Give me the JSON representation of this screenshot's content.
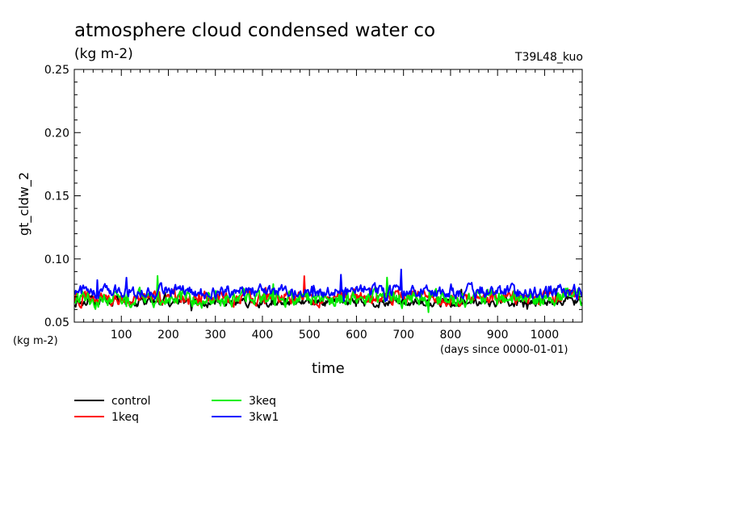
{
  "chart_data": {
    "type": "line",
    "title": "atmosphere cloud condensed water co",
    "units_label": "(kg m-2)",
    "tag": "T39L48_kuo",
    "ylabel": "gt_cldw_2",
    "xlabel": "time",
    "y_units": "(kg m-2)",
    "x_units": "(days since 0000-01-01)",
    "xlim": [
      0,
      1080
    ],
    "ylim": [
      0.05,
      0.25
    ],
    "x_ticks": [
      100,
      200,
      300,
      400,
      500,
      600,
      700,
      800,
      900,
      1000
    ],
    "y_ticks": [
      "0.05",
      "0.10",
      "0.15",
      "0.20",
      "0.25"
    ],
    "grid": false,
    "legend_position": "bottom-left",
    "series": [
      {
        "name": "control",
        "color": "#000000",
        "mean": 0.066,
        "amp": 0.004
      },
      {
        "name": "1keq",
        "color": "#ff0000",
        "mean": 0.069,
        "amp": 0.006
      },
      {
        "name": "3keq",
        "color": "#00ee00",
        "mean": 0.069,
        "amp": 0.007
      },
      {
        "name": "3kw1",
        "color": "#0000ff",
        "mean": 0.074,
        "amp": 0.006
      }
    ]
  }
}
